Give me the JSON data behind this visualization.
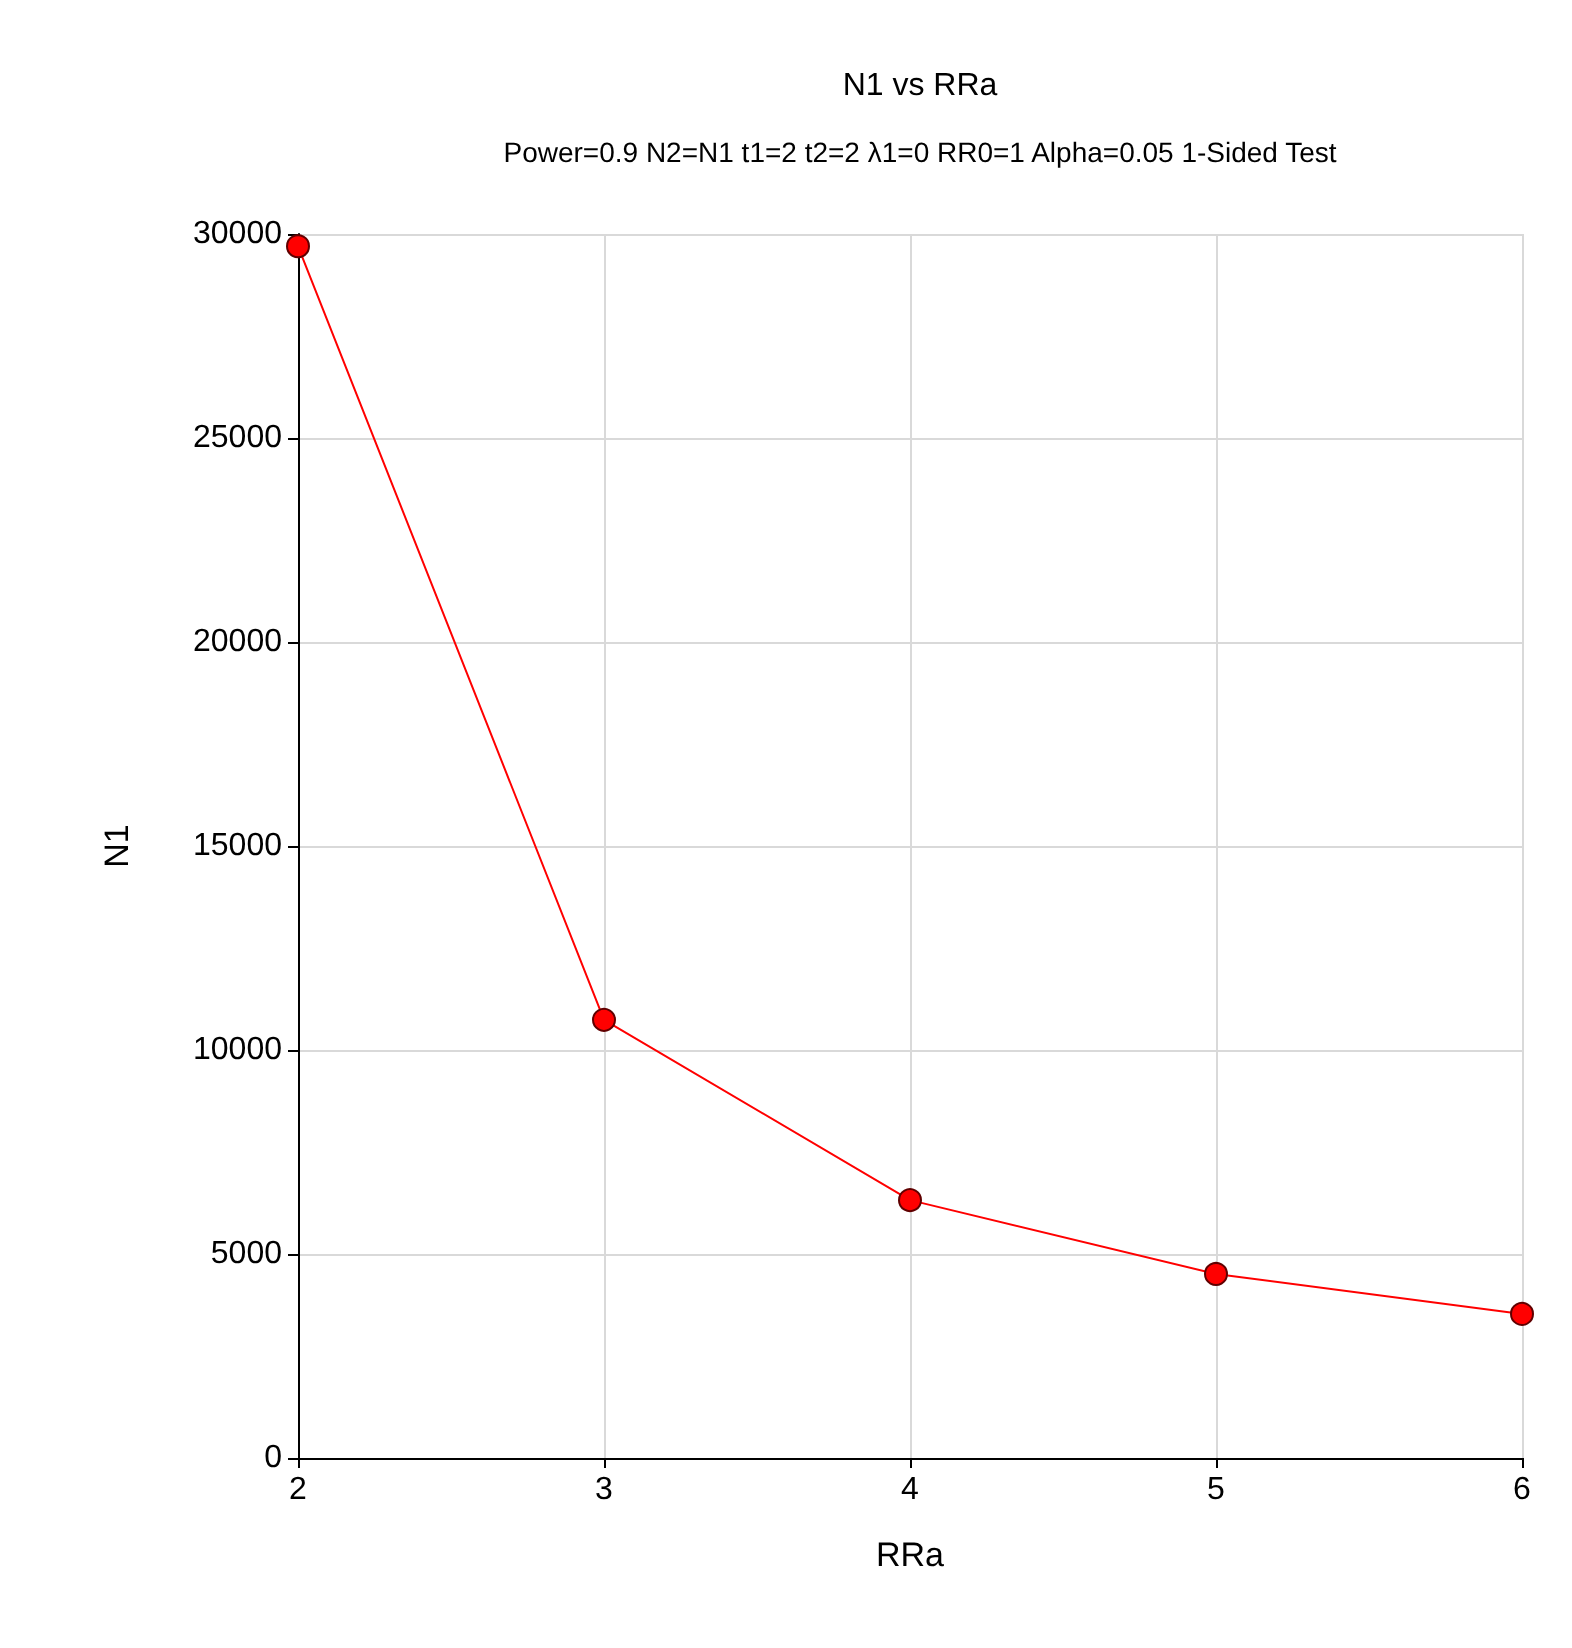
{
  "chart_data": {
    "type": "line",
    "title": "N1 vs RRa",
    "subtitle": "Power=0.9 N2=N1 t1=2 t2=2 λ1=0 RR0=1 Alpha=0.05 1-Sided Test",
    "xlabel": "RRa",
    "ylabel": "N1",
    "x": [
      2,
      3,
      4,
      5,
      6
    ],
    "series": [
      {
        "color": "#ff0000",
        "values": [
          29700,
          10740,
          6320,
          4510,
          3530
        ]
      }
    ],
    "xlim": [
      2,
      6
    ],
    "xticks": [
      2,
      3,
      4,
      5,
      6
    ],
    "ylim": [
      0,
      30000
    ],
    "yticks": [
      0,
      5000,
      10000,
      15000,
      20000,
      25000,
      30000
    ],
    "grid": true,
    "marker": "circle",
    "line_style": "solid"
  }
}
